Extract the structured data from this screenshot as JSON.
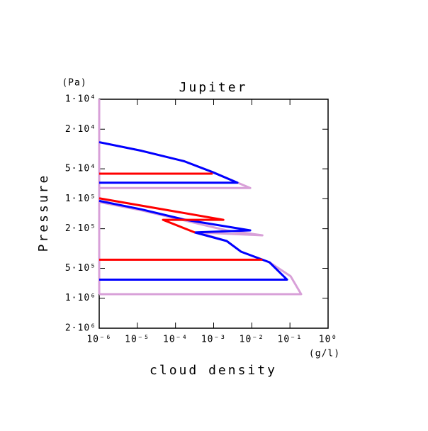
{
  "chart_data": {
    "type": "line",
    "title": "Jupiter",
    "x_label": "cloud density",
    "y_label": "Pressure",
    "x_unit": "(g/l)",
    "y_unit": "(Pa)",
    "xscale": "log",
    "yscale": "log",
    "y_inverted": true,
    "xlim": [
      1e-06,
      1
    ],
    "ylim": [
      10000,
      2000000
    ],
    "xticks": [
      {
        "value": 1e-06,
        "label": "10⁻⁶"
      },
      {
        "value": 1e-05,
        "label": "10⁻⁵"
      },
      {
        "value": 0.0001,
        "label": "10⁻⁴"
      },
      {
        "value": 0.001,
        "label": "10⁻³"
      },
      {
        "value": 0.01,
        "label": "10⁻²"
      },
      {
        "value": 0.1,
        "label": "10⁻¹"
      },
      {
        "value": 1,
        "label": "10⁰"
      }
    ],
    "yticks": [
      {
        "value": 10000,
        "label": "1·10⁴"
      },
      {
        "value": 20000,
        "label": "2·10⁴"
      },
      {
        "value": 50000,
        "label": "5·10⁴"
      },
      {
        "value": 100000,
        "label": "1·10⁵"
      },
      {
        "value": 200000,
        "label": "2·10⁵"
      },
      {
        "value": 500000,
        "label": "5·10⁵"
      },
      {
        "value": 1000000,
        "label": "1·10⁶"
      },
      {
        "value": 2000000,
        "label": "2·10⁶"
      }
    ],
    "series": [
      {
        "color": "#d8a0d8",
        "x": [
          1e-06,
          1e-06,
          null,
          1e-06,
          1.3e-05,
          0.00017,
          0.00094,
          0.0091,
          1e-06,
          null,
          1e-06,
          1.3e-05,
          0.00017,
          0.0022,
          0.019,
          0.0004,
          0.0022,
          0.0052,
          0.029,
          0.104,
          0.197,
          1e-06
        ],
        "y": [
          10000,
          910000,
          null,
          27000,
          33000,
          42000,
          54000,
          78000,
          78000,
          null,
          108000,
          131000,
          165000,
          208000,
          233000,
          218000,
          266000,
          340000,
          435000,
          600000,
          910000,
          910000
        ]
      },
      {
        "color": "#0000ff",
        "x": [
          1e-06,
          1.3e-05,
          0.00017,
          0.00094,
          0.0042,
          1e-06,
          null,
          1e-06,
          1.3e-05,
          0.00017,
          0.0091,
          0.00032,
          0.0022,
          0.0052,
          0.029,
          0.084,
          1e-06
        ],
        "y": [
          27000,
          33000,
          42000,
          54000,
          69000,
          69000,
          null,
          105000,
          128000,
          162000,
          208000,
          218000,
          266000,
          340000,
          435000,
          650000,
          650000
        ]
      },
      {
        "color": "#ff0000",
        "x": [
          1e-06,
          0.00094,
          null,
          1e-06,
          0.0018,
          4.7e-05,
          0.00032,
          null,
          0.019,
          1e-06
        ],
        "y": [
          56000,
          56000,
          null,
          99000,
          163000,
          163000,
          218000,
          null,
          410000,
          410000
        ]
      }
    ]
  }
}
